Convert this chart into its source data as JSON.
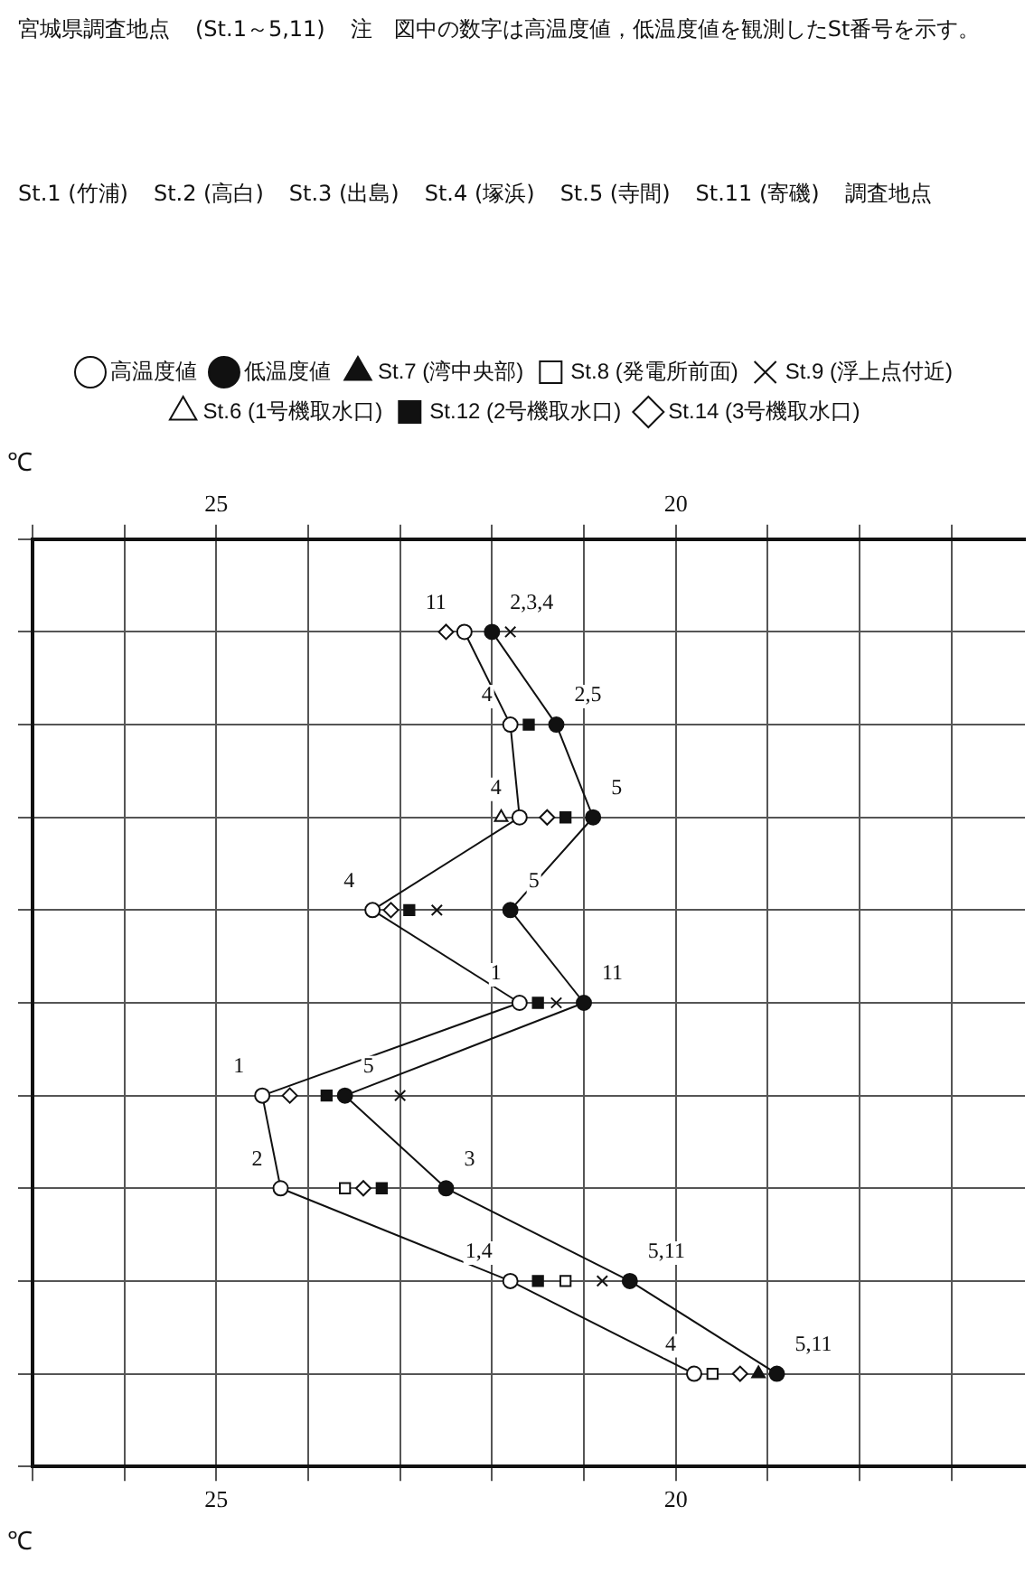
{
  "chart_data": {
    "type": "line",
    "orientation": "horizontal",
    "annotations": [
      "宮城県調査地点",
      "(St.1～5,11)",
      "注　図中の数字は高温度値，低温度値を観測したSt番号を示す。",
      "St.1 (竹浦)",
      "St.2 (高白)",
      "St.3 (出島)",
      "St.4 (塚浜)",
      "St.5 (寺間)",
      "St.11 (寄磯)",
      "調査地点",
      "11",
      "2,3,4",
      "4",
      "2,5",
      "4",
      "5",
      "4",
      "5",
      "1",
      "11",
      "1",
      "5",
      "2",
      "3",
      "1,4",
      "5,11",
      "4",
      "5,11"
    ],
    "xlabel": "℃",
    "x2label": "℃",
    "categories": [
      null,
      null,
      null,
      null,
      null,
      null,
      null,
      null,
      null,
      null,
      null
    ],
    "xlim": [
      27,
      16.2
    ],
    "xticks": [
      {
        "value": 27,
        "label": null
      },
      {
        "value": 26,
        "label": null
      },
      25,
      {
        "value": 24,
        "label": null
      },
      {
        "value": 23,
        "label": null
      },
      {
        "value": 22,
        "label": null
      },
      {
        "value": 21,
        "label": null
      },
      20,
      {
        "value": 19,
        "label": null
      },
      {
        "value": 18,
        "label": null
      },
      {
        "value": 17,
        "label": null
      }
    ],
    "x2lim": [
      27,
      16.2
    ],
    "x2ticks": [
      {
        "value": 27,
        "label": null
      },
      {
        "value": 26,
        "label": null
      },
      25,
      {
        "value": 24,
        "label": null
      },
      {
        "value": 23,
        "label": null
      },
      {
        "value": 22,
        "label": null
      },
      {
        "value": 21,
        "label": null
      },
      20,
      {
        "value": 19,
        "label": null
      },
      {
        "value": 18,
        "label": null
      },
      {
        "value": 17,
        "label": null
      }
    ],
    "grid": true,
    "legend": "top",
    "line_style": "solid",
    "series": [
      {
        "name": "高温度値",
        "marker": "circle",
        "color": "#ffffff",
        "values": [
          null,
          22.3,
          21.8,
          21.7,
          23.3,
          21.7,
          24.5,
          24.3,
          21.8,
          19.8,
          null
        ]
      },
      {
        "name": "低温度値",
        "marker": "circle",
        "color": "#111111",
        "values": [
          null,
          22.0,
          21.3,
          20.9,
          21.8,
          21.0,
          23.6,
          22.5,
          20.5,
          18.9,
          null
        ]
      },
      {
        "name": "St.7 (湾中央部)",
        "type": "scatter",
        "marker": "triangle",
        "color": "#111111",
        "values": [
          null,
          null,
          null,
          null,
          null,
          null,
          null,
          null,
          null,
          19.1,
          null
        ]
      },
      {
        "name": "St.8 (発電所前面)",
        "type": "scatter",
        "marker": "square",
        "color": "#ffffff",
        "values": [
          null,
          null,
          null,
          null,
          null,
          null,
          null,
          23.6,
          21.2,
          19.6,
          null
        ]
      },
      {
        "name": "St.9 (浮上点付近)",
        "type": "scatter",
        "marker": "cross",
        "color": "#111111",
        "values": [
          null,
          21.8,
          null,
          null,
          22.6,
          21.3,
          23.0,
          null,
          20.8,
          null,
          null
        ]
      },
      {
        "name": "St.6 (1号機取水口)",
        "type": "scatter",
        "marker": "triangle",
        "color": "#ffffff",
        "values": [
          null,
          null,
          null,
          21.9,
          null,
          null,
          null,
          null,
          null,
          null,
          null
        ]
      },
      {
        "name": "St.12 (2号機取水口)",
        "type": "scatter",
        "marker": "square",
        "color": "#111111",
        "values": [
          null,
          null,
          21.6,
          21.2,
          22.9,
          21.5,
          23.8,
          23.2,
          21.5,
          null,
          null
        ]
      },
      {
        "name": "St.14 (3号機取水口)",
        "type": "scatter",
        "marker": "diamond",
        "color": "#ffffff",
        "values": [
          null,
          22.5,
          null,
          21.4,
          23.1,
          null,
          24.2,
          23.4,
          null,
          19.3,
          null
        ]
      }
    ]
  }
}
